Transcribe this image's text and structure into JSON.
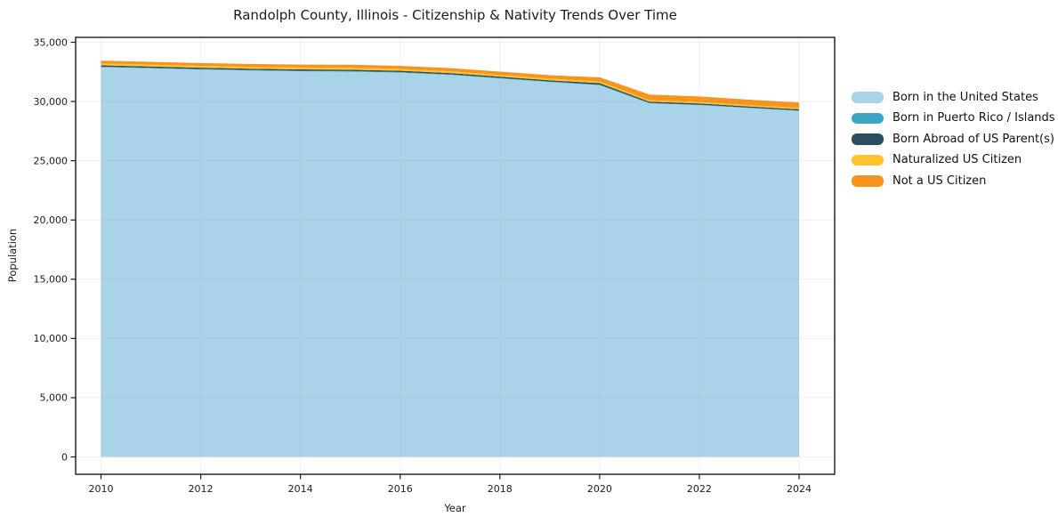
{
  "chart_data": {
    "type": "area",
    "stacked": true,
    "title": "Randolph County, Illinois - Citizenship & Nativity Trends Over Time",
    "xlabel": "Year",
    "ylabel": "Population",
    "x": [
      2010,
      2011,
      2012,
      2013,
      2014,
      2015,
      2016,
      2017,
      2018,
      2019,
      2020,
      2021,
      2022,
      2023,
      2024
    ],
    "series": [
      {
        "name": "Born in the United States",
        "color": "#a8d3e8",
        "values": [
          32900,
          32800,
          32700,
          32620,
          32550,
          32520,
          32440,
          32250,
          31950,
          31650,
          31380,
          29850,
          29700,
          29450,
          29210
        ]
      },
      {
        "name": "Born in Puerto Rico / Islands",
        "color": "#3aa5c5",
        "values": [
          40,
          40,
          40,
          40,
          45,
          45,
          40,
          40,
          40,
          35,
          40,
          30,
          30,
          30,
          30
        ]
      },
      {
        "name": "Born Abroad of US Parent(s)",
        "color": "#2b4d5f",
        "values": [
          115,
          115,
          110,
          110,
          115,
          120,
          115,
          110,
          105,
          100,
          130,
          110,
          110,
          105,
          105
        ]
      },
      {
        "name": "Naturalized US Citizen",
        "color": "#fcc32c",
        "values": [
          160,
          160,
          155,
          150,
          155,
          160,
          155,
          150,
          145,
          140,
          150,
          120,
          115,
          110,
          110
        ]
      },
      {
        "name": "Not a US Citizen",
        "color": "#f6941e",
        "values": [
          230,
          235,
          240,
          245,
          250,
          255,
          260,
          270,
          280,
          300,
          340,
          480,
          470,
          465,
          460
        ]
      }
    ],
    "xticks": [
      2010,
      2012,
      2014,
      2016,
      2018,
      2020,
      2022,
      2024
    ],
    "yticks": [
      0,
      5000,
      10000,
      15000,
      20000,
      25000,
      30000,
      35000
    ],
    "ylim": [
      0,
      35000
    ],
    "xlim": [
      2010,
      2024
    ],
    "grid": true,
    "legend_position": "right",
    "spine_color": "#1a1a1a",
    "grid_color": "#9a9a9a"
  }
}
